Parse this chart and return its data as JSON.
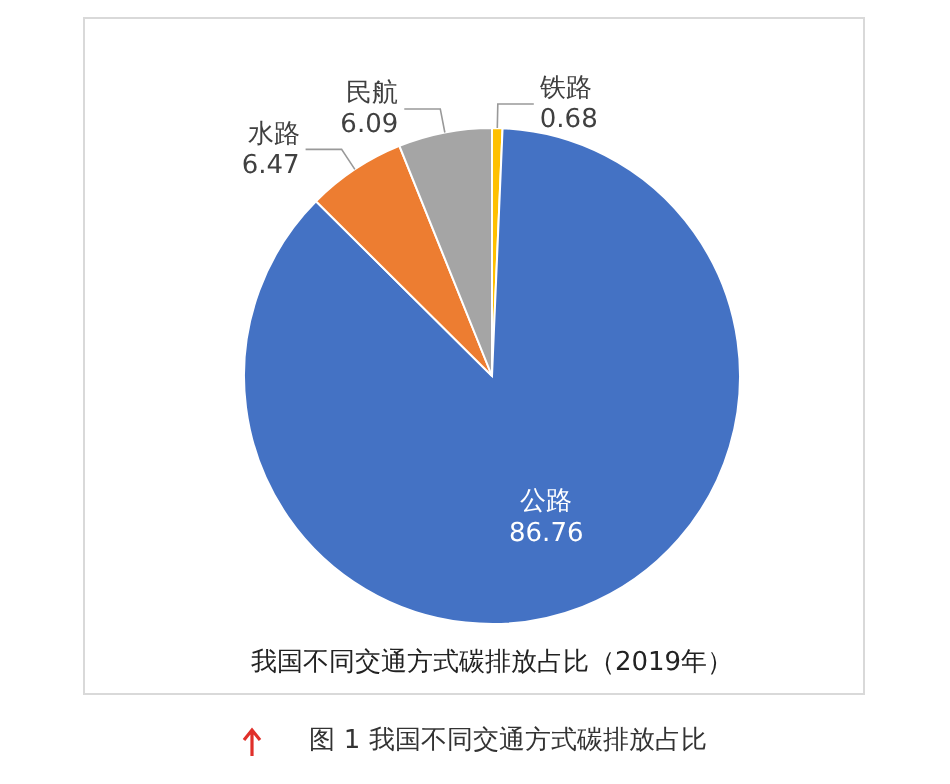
{
  "chart_data": {
    "type": "pie",
    "title": "我国不同交通方式碳排放占比（2019年）",
    "annotations": [
      "图 1  我国不同交通方式碳排放占比"
    ],
    "categories": [
      "铁路",
      "公路",
      "水路",
      "民航"
    ],
    "values": [
      0.68,
      86.76,
      6.47,
      6.09
    ],
    "colors": [
      "#ffc000",
      "#4472c4",
      "#ed7d31",
      "#a5a5a5"
    ],
    "data_labels": true
  }
}
